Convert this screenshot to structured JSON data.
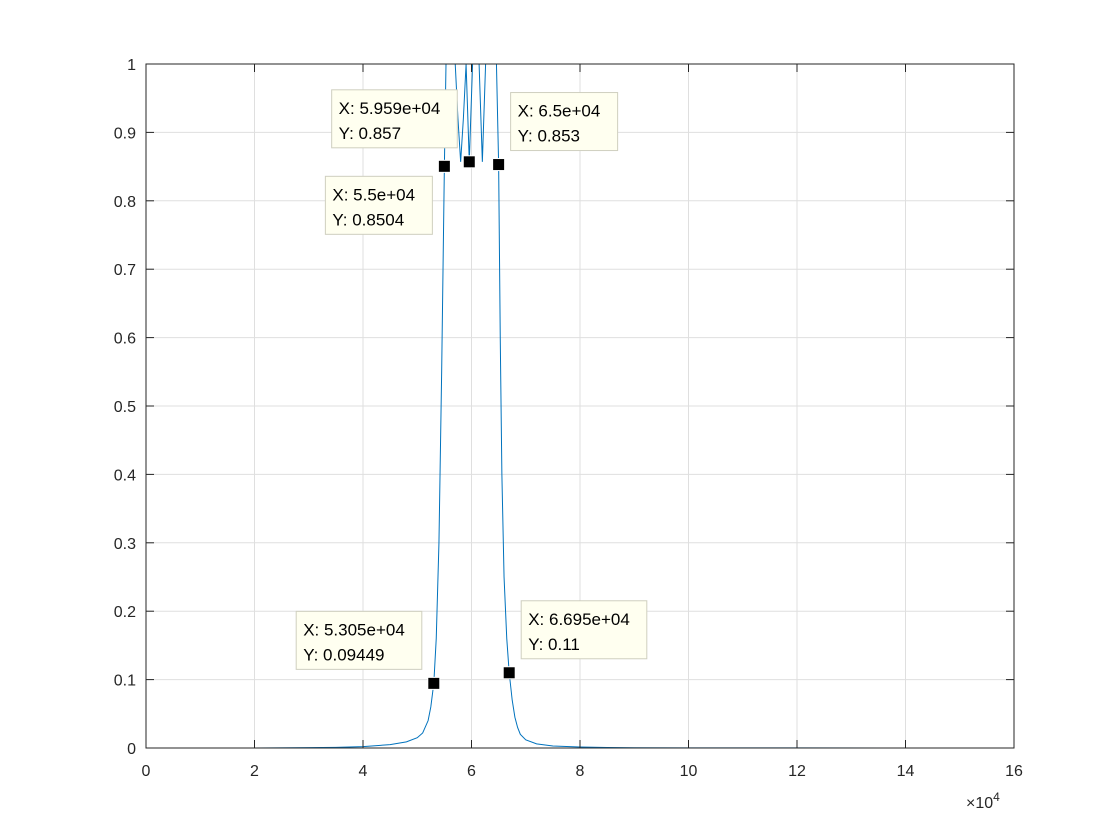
{
  "chart_data": {
    "type": "line",
    "title": "",
    "xlabel": "",
    "ylabel": "",
    "x_exponent_label": "×10",
    "x_exponent_power": "4",
    "x_multiplier": 10000,
    "xlim": [
      0,
      160000
    ],
    "ylim": [
      0,
      1
    ],
    "grid": true,
    "legend": "none",
    "x_ticks": [
      0,
      20000,
      40000,
      60000,
      80000,
      100000,
      120000,
      140000,
      160000
    ],
    "x_tick_labels": [
      "0",
      "2",
      "4",
      "6",
      "8",
      "10",
      "12",
      "14",
      "16"
    ],
    "y_ticks": [
      0,
      0.1,
      0.2,
      0.3,
      0.4,
      0.5,
      0.6,
      0.7,
      0.8,
      0.9,
      1
    ],
    "y_tick_labels": [
      "0",
      "0.1",
      "0.2",
      "0.3",
      "0.4",
      "0.5",
      "0.6",
      "0.7",
      "0.8",
      "0.9",
      "1"
    ],
    "series": [
      {
        "color": "#0072BD",
        "x": [
          0,
          20000,
          30000,
          35000,
          40000,
          45000,
          48000,
          50000,
          51000,
          52000,
          52500,
          53050,
          53500,
          54000,
          54500,
          55000,
          55300,
          55500,
          55700,
          56000,
          56500,
          57000,
          57500,
          58000,
          58500,
          59000,
          59590,
          60200,
          60800,
          61400,
          62000,
          62600,
          63200,
          63800,
          64100,
          64300,
          64600,
          65000,
          65300,
          65600,
          66000,
          66500,
          66950,
          67500,
          68000,
          68500,
          69000,
          70000,
          72000,
          75000,
          80000,
          85000,
          90000,
          100000,
          120000,
          160000
        ],
        "y": [
          0,
          0,
          0.0005,
          0.001,
          0.002,
          0.005,
          0.009,
          0.015,
          0.022,
          0.04,
          0.06,
          0.09449,
          0.16,
          0.3,
          0.55,
          0.8504,
          1.0,
          1.0,
          1.0,
          1.0,
          1.0,
          1.0,
          0.92,
          0.857,
          0.92,
          1.0,
          0.857,
          1.0,
          1.0,
          1.0,
          0.857,
          1.0,
          1.0,
          1.0,
          1.0,
          1.0,
          1.0,
          0.853,
          0.6,
          0.4,
          0.25,
          0.16,
          0.11,
          0.07,
          0.045,
          0.03,
          0.02,
          0.012,
          0.006,
          0.003,
          0.0015,
          0.0008,
          0.0004,
          0.0002,
          0.0001,
          0
        ]
      }
    ],
    "datatips": [
      {
        "x": 59590,
        "y": 0.857,
        "x_text": "X: 5.959e+04",
        "y_text": "Y: 0.857",
        "box": "up-left"
      },
      {
        "x": 65000,
        "y": 0.853,
        "x_text": "X: 6.5e+04",
        "y_text": "Y: 0.853",
        "box": "up-right"
      },
      {
        "x": 55000,
        "y": 0.8504,
        "x_text": "X: 5.5e+04",
        "y_text": "Y: 0.8504",
        "box": "down-left"
      },
      {
        "x": 53050,
        "y": 0.09449,
        "x_text": "X: 5.305e+04",
        "y_text": "Y: 0.09449",
        "box": "up-left"
      },
      {
        "x": 66950,
        "y": 0.11,
        "x_text": "X: 6.695e+04",
        "y_text": "Y: 0.11",
        "box": "up-right"
      }
    ]
  }
}
